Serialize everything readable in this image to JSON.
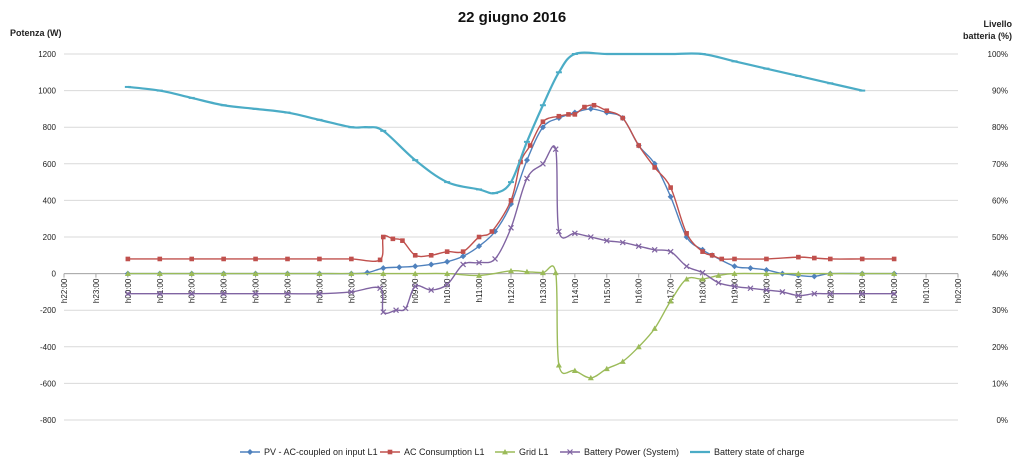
{
  "chart_data": {
    "type": "line",
    "title": "22 giugno 2016",
    "ylabel": "Potenza (W)",
    "y2label_lines": [
      "Livello",
      "batteria (%)"
    ],
    "xlim": [
      -2,
      26
    ],
    "ylim": [
      -800,
      1200
    ],
    "y2lim": [
      0,
      100
    ],
    "y_ticks": [
      -800,
      -600,
      -400,
      -200,
      0,
      200,
      400,
      600,
      800,
      1000,
      1200
    ],
    "y2_ticks": [
      "0%",
      "10%",
      "20%",
      "30%",
      "40%",
      "50%",
      "60%",
      "70%",
      "80%",
      "90%",
      "100%"
    ],
    "x_ticks": [
      "h22:00",
      "h23:00",
      "h00:00",
      "h01:00",
      "h02:00",
      "h03:00",
      "h04:00",
      "h05:00",
      "h06:00",
      "h07:00",
      "h08:00",
      "h09:00",
      "h10:00",
      "h11:00",
      "h12:00",
      "h13:00",
      "h14:00",
      "h15:00",
      "h16:00",
      "h17:00",
      "h18:00",
      "h19:00",
      "h20:00",
      "h21:00",
      "h22:00",
      "h23:00",
      "h00:00",
      "h01:00",
      "h02:00"
    ],
    "grid": "horizontal",
    "legend_position": "bottom",
    "series": [
      {
        "name": "PV - AC-coupled on input L1",
        "color": "#4F81BD",
        "marker": "diamond",
        "axis": "left",
        "points": [
          [
            0,
            0
          ],
          [
            1,
            0
          ],
          [
            2,
            0
          ],
          [
            3,
            0
          ],
          [
            4,
            0
          ],
          [
            5,
            0
          ],
          [
            6,
            0
          ],
          [
            7,
            0
          ],
          [
            7.5,
            5
          ],
          [
            8,
            30
          ],
          [
            8.5,
            35
          ],
          [
            9,
            40
          ],
          [
            9.5,
            50
          ],
          [
            10,
            65
          ],
          [
            10.5,
            95
          ],
          [
            11,
            150
          ],
          [
            11.5,
            230
          ],
          [
            12,
            380
          ],
          [
            12.5,
            620
          ],
          [
            13,
            800
          ],
          [
            13.5,
            850
          ],
          [
            14,
            880
          ],
          [
            14.5,
            900
          ],
          [
            15,
            880
          ],
          [
            15.5,
            850
          ],
          [
            16,
            700
          ],
          [
            16.5,
            600
          ],
          [
            17,
            420
          ],
          [
            17.5,
            200
          ],
          [
            18,
            130
          ],
          [
            18.3,
            100
          ],
          [
            19,
            40
          ],
          [
            19.5,
            30
          ],
          [
            20,
            20
          ],
          [
            20.5,
            0
          ],
          [
            21,
            -10
          ],
          [
            21.5,
            -15
          ],
          [
            22,
            0
          ],
          [
            23,
            0
          ],
          [
            24,
            0
          ]
        ]
      },
      {
        "name": "AC Consumption L1",
        "color": "#C0504D",
        "marker": "square",
        "axis": "left",
        "points": [
          [
            0,
            80
          ],
          [
            1,
            80
          ],
          [
            2,
            80
          ],
          [
            3,
            80
          ],
          [
            4,
            80
          ],
          [
            5,
            80
          ],
          [
            6,
            80
          ],
          [
            7,
            80
          ],
          [
            7.9,
            75
          ],
          [
            8,
            200
          ],
          [
            8.3,
            190
          ],
          [
            8.6,
            180
          ],
          [
            9,
            100
          ],
          [
            9.5,
            100
          ],
          [
            10,
            120
          ],
          [
            10.5,
            120
          ],
          [
            11,
            200
          ],
          [
            11.4,
            230
          ],
          [
            12,
            400
          ],
          [
            12.3,
            610
          ],
          [
            12.6,
            700
          ],
          [
            13,
            830
          ],
          [
            13.5,
            860
          ],
          [
            13.8,
            870
          ],
          [
            14,
            870
          ],
          [
            14.3,
            910
          ],
          [
            14.6,
            920
          ],
          [
            15,
            890
          ],
          [
            15.5,
            850
          ],
          [
            16,
            700
          ],
          [
            16.5,
            580
          ],
          [
            17,
            470
          ],
          [
            17.5,
            220
          ],
          [
            18,
            120
          ],
          [
            18.3,
            100
          ],
          [
            18.6,
            80
          ],
          [
            19,
            80
          ],
          [
            20,
            80
          ],
          [
            21,
            90
          ],
          [
            21.5,
            85
          ],
          [
            22,
            80
          ],
          [
            23,
            80
          ],
          [
            24,
            80
          ]
        ]
      },
      {
        "name": "Grid L1",
        "color": "#9BBB59",
        "marker": "triangle",
        "axis": "left",
        "points": [
          [
            0,
            0
          ],
          [
            1,
            0
          ],
          [
            2,
            0
          ],
          [
            3,
            0
          ],
          [
            4,
            0
          ],
          [
            5,
            0
          ],
          [
            6,
            0
          ],
          [
            7,
            0
          ],
          [
            8,
            0
          ],
          [
            9,
            0
          ],
          [
            10,
            0
          ],
          [
            11,
            -10
          ],
          [
            12,
            15
          ],
          [
            12.5,
            10
          ],
          [
            13,
            5
          ],
          [
            13.4,
            5
          ],
          [
            13.5,
            -500
          ],
          [
            14,
            -530
          ],
          [
            14.5,
            -570
          ],
          [
            15,
            -520
          ],
          [
            15.5,
            -480
          ],
          [
            16,
            -400
          ],
          [
            16.5,
            -300
          ],
          [
            17,
            -150
          ],
          [
            17.5,
            -30
          ],
          [
            18,
            -30
          ],
          [
            18.5,
            -10
          ],
          [
            19,
            0
          ],
          [
            20,
            0
          ],
          [
            21,
            0
          ],
          [
            22,
            0
          ],
          [
            23,
            0
          ],
          [
            24,
            0
          ]
        ]
      },
      {
        "name": "Battery Power (System)",
        "color": "#8064A2",
        "marker": "x",
        "axis": "left",
        "points": [
          [
            0,
            -110
          ],
          [
            1,
            -110
          ],
          [
            2,
            -110
          ],
          [
            3,
            -110
          ],
          [
            4,
            -110
          ],
          [
            5,
            -110
          ],
          [
            6,
            -110
          ],
          [
            7,
            -100
          ],
          [
            7.9,
            -80
          ],
          [
            8,
            -210
          ],
          [
            8.4,
            -200
          ],
          [
            8.7,
            -190
          ],
          [
            9,
            -70
          ],
          [
            9.5,
            -90
          ],
          [
            10,
            -60
          ],
          [
            10.5,
            50
          ],
          [
            11,
            60
          ],
          [
            11.5,
            80
          ],
          [
            12,
            250
          ],
          [
            12.5,
            520
          ],
          [
            13,
            600
          ],
          [
            13.4,
            680
          ],
          [
            13.5,
            230
          ],
          [
            14,
            220
          ],
          [
            14.5,
            200
          ],
          [
            15,
            180
          ],
          [
            15.5,
            170
          ],
          [
            16,
            150
          ],
          [
            16.5,
            130
          ],
          [
            17,
            120
          ],
          [
            17.5,
            40
          ],
          [
            18,
            5
          ],
          [
            18.5,
            -50
          ],
          [
            19,
            -70
          ],
          [
            19.5,
            -80
          ],
          [
            20,
            -90
          ],
          [
            20.5,
            -100
          ],
          [
            21,
            -120
          ],
          [
            21.5,
            -110
          ],
          [
            22,
            -110
          ],
          [
            23,
            -110
          ],
          [
            24,
            -110
          ]
        ]
      },
      {
        "name": "Battery state of charge",
        "color": "#4BACC6",
        "marker": "dash",
        "axis": "right",
        "points": [
          [
            0,
            91
          ],
          [
            1,
            90
          ],
          [
            2,
            88
          ],
          [
            3,
            86
          ],
          [
            4,
            85
          ],
          [
            5,
            84
          ],
          [
            6,
            82
          ],
          [
            7,
            80
          ],
          [
            7.5,
            80
          ],
          [
            8,
            79
          ],
          [
            9,
            71
          ],
          [
            10,
            65
          ],
          [
            11,
            63
          ],
          [
            11.5,
            62
          ],
          [
            12,
            65
          ],
          [
            12.5,
            76
          ],
          [
            13,
            86
          ],
          [
            13.5,
            95
          ],
          [
            14,
            100
          ],
          [
            15,
            100
          ],
          [
            16,
            100
          ],
          [
            17,
            100
          ],
          [
            18,
            100
          ],
          [
            19,
            98
          ],
          [
            20,
            96
          ],
          [
            21,
            94
          ],
          [
            22,
            92
          ],
          [
            23,
            90
          ]
        ]
      }
    ]
  }
}
